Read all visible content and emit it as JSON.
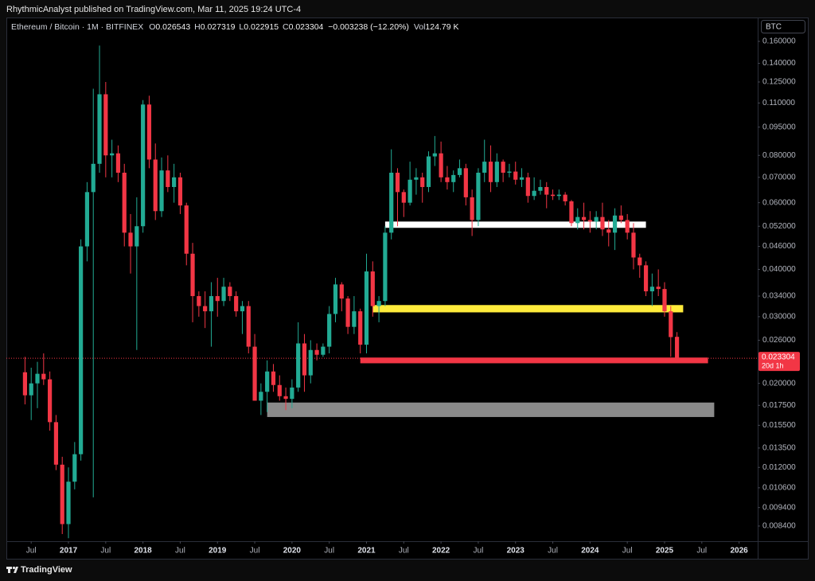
{
  "page_title": "RhythmicAnalyst published on TradingView.com, Mar 11, 2025 19:24 UTC-4",
  "footer": "TradingView",
  "chart_data": {
    "type": "candlestick",
    "symbol": "Ethereum / Bitcoin · 1M · BITFINEX",
    "ohlc": [
      {
        "label": "O",
        "value": 0.026543
      },
      {
        "label": "H",
        "value": 0.027319
      },
      {
        "label": "L",
        "value": 0.022915
      },
      {
        "label": "C",
        "value": 0.023304
      }
    ],
    "change": "−0.003238 (−12.20%)",
    "volume_label": "Vol",
    "volume": "124.79 K",
    "currency": "BTC",
    "last_price": 0.023304,
    "countdown": "20d 1h",
    "log_scale": true,
    "grid": false,
    "up_color": "#22ab94",
    "down_color": "#f23645",
    "xlim": [
      "2016-03",
      "2026-04"
    ],
    "ylim": [
      0.00766,
      0.185
    ],
    "xticks": [
      {
        "value": "2016-07",
        "label": "Jul"
      },
      {
        "value": "2017-01",
        "label": "2017"
      },
      {
        "value": "2017-07",
        "label": "Jul"
      },
      {
        "value": "2018-01",
        "label": "2018"
      },
      {
        "value": "2018-07",
        "label": "Jul"
      },
      {
        "value": "2019-01",
        "label": "2019"
      },
      {
        "value": "2019-07",
        "label": "Jul"
      },
      {
        "value": "2020-01",
        "label": "2020"
      },
      {
        "value": "2020-07",
        "label": "Jul"
      },
      {
        "value": "2021-01",
        "label": "2021"
      },
      {
        "value": "2021-07",
        "label": "Jul"
      },
      {
        "value": "2022-01",
        "label": "2022"
      },
      {
        "value": "2022-07",
        "label": "Jul"
      },
      {
        "value": "2023-01",
        "label": "2023"
      },
      {
        "value": "2023-07",
        "label": "Jul"
      },
      {
        "value": "2024-01",
        "label": "2024"
      },
      {
        "value": "2024-07",
        "label": "Jul"
      },
      {
        "value": "2025-01",
        "label": "2025"
      },
      {
        "value": "2025-07",
        "label": "Jul"
      },
      {
        "value": "2026-01",
        "label": "2026"
      }
    ],
    "yticks": [
      {
        "value": 0.16,
        "label": "0.160000"
      },
      {
        "value": 0.14,
        "label": "0.140000"
      },
      {
        "value": 0.125,
        "label": "0.125000"
      },
      {
        "value": 0.11,
        "label": "0.110000"
      },
      {
        "value": 0.095,
        "label": "0.095000"
      },
      {
        "value": 0.08,
        "label": "0.080000"
      },
      {
        "value": 0.07,
        "label": "0.070000"
      },
      {
        "value": 0.06,
        "label": "0.060000"
      },
      {
        "value": 0.052,
        "label": "0.052000"
      },
      {
        "value": 0.046,
        "label": "0.046000"
      },
      {
        "value": 0.04,
        "label": "0.040000"
      },
      {
        "value": 0.034,
        "label": "0.034000"
      },
      {
        "value": 0.03,
        "label": "0.030000"
      },
      {
        "value": 0.026,
        "label": "0.026000"
      },
      {
        "value": 0.02,
        "label": "0.020000"
      },
      {
        "value": 0.0175,
        "label": "0.017500"
      },
      {
        "value": 0.0155,
        "label": "0.015500"
      },
      {
        "value": 0.0135,
        "label": "0.013500"
      },
      {
        "value": 0.012,
        "label": "0.012000"
      },
      {
        "value": 0.0106,
        "label": "0.010600"
      },
      {
        "value": 0.0094,
        "label": "0.009400"
      },
      {
        "value": 0.0084,
        "label": "0.008400"
      }
    ],
    "bands": [
      {
        "color": "#8a8a8a",
        "top": 0.0178,
        "bottom": 0.0163,
        "start": "2019-09",
        "end": "2025-09"
      },
      {
        "color": "#f23645",
        "top": 0.0234,
        "bottom": 0.0226,
        "start": "2020-12",
        "end": "2025-08"
      },
      {
        "color": "#ffeb3b",
        "top": 0.0322,
        "bottom": 0.0308,
        "start": "2021-02",
        "end": "2025-04"
      },
      {
        "color": "#ffffff",
        "top": 0.0535,
        "bottom": 0.0515,
        "start": "2021-04",
        "end": "2024-10"
      }
    ],
    "x": [
      "2016-06",
      "2016-07",
      "2016-08",
      "2016-09",
      "2016-10",
      "2016-11",
      "2016-12",
      "2017-01",
      "2017-02",
      "2017-03",
      "2017-04",
      "2017-05",
      "2017-06",
      "2017-07",
      "2017-08",
      "2017-09",
      "2017-10",
      "2017-11",
      "2017-12",
      "2018-01",
      "2018-02",
      "2018-03",
      "2018-04",
      "2018-05",
      "2018-06",
      "2018-07",
      "2018-08",
      "2018-09",
      "2018-10",
      "2018-11",
      "2018-12",
      "2019-01",
      "2019-02",
      "2019-03",
      "2019-04",
      "2019-05",
      "2019-06",
      "2019-07",
      "2019-08",
      "2019-09",
      "2019-10",
      "2019-11",
      "2019-12",
      "2020-01",
      "2020-02",
      "2020-03",
      "2020-04",
      "2020-05",
      "2020-06",
      "2020-07",
      "2020-08",
      "2020-09",
      "2020-10",
      "2020-11",
      "2020-12",
      "2021-01",
      "2021-02",
      "2021-03",
      "2021-04",
      "2021-05",
      "2021-06",
      "2021-07",
      "2021-08",
      "2021-09",
      "2021-10",
      "2021-11",
      "2021-12",
      "2022-01",
      "2022-02",
      "2022-03",
      "2022-04",
      "2022-05",
      "2022-06",
      "2022-07",
      "2022-08",
      "2022-09",
      "2022-10",
      "2022-11",
      "2022-12",
      "2023-01",
      "2023-02",
      "2023-03",
      "2023-04",
      "2023-05",
      "2023-06",
      "2023-07",
      "2023-08",
      "2023-09",
      "2023-10",
      "2023-11",
      "2023-12",
      "2024-01",
      "2024-02",
      "2024-03",
      "2024-04",
      "2024-05",
      "2024-06",
      "2024-07",
      "2024-08",
      "2024-09",
      "2024-10",
      "2024-11",
      "2024-12",
      "2025-01",
      "2025-02",
      "2025-03"
    ],
    "open": [
      0.0214,
      0.0186,
      0.02,
      0.0212,
      0.0205,
      0.0158,
      0.0122,
      0.0085,
      0.011,
      0.013,
      0.046,
      0.064,
      0.076,
      0.116,
      0.08,
      0.081,
      0.072,
      0.05,
      0.046,
      0.052,
      0.109,
      0.078,
      0.057,
      0.073,
      0.066,
      0.07,
      0.059,
      0.044,
      0.034,
      0.032,
      0.031,
      0.034,
      0.033,
      0.036,
      0.034,
      0.031,
      0.032,
      0.025,
      0.018,
      0.019,
      0.0215,
      0.0198,
      0.0185,
      0.0182,
      0.0195,
      0.0255,
      0.021,
      0.0245,
      0.0238,
      0.025,
      0.0305,
      0.0365,
      0.0335,
      0.0282,
      0.031,
      0.0253,
      0.0395,
      0.032,
      0.033,
      0.05,
      0.072,
      0.064,
      0.06,
      0.069,
      0.07,
      0.066,
      0.0795,
      0.081,
      0.07,
      0.068,
      0.071,
      0.074,
      0.062,
      0.054,
      0.072,
      0.077,
      0.068,
      0.077,
      0.072,
      0.0725,
      0.069,
      0.07,
      0.0625,
      0.0645,
      0.066,
      0.063,
      0.0625,
      0.063,
      0.0605,
      0.053,
      0.055,
      0.054,
      0.0535,
      0.055,
      0.051,
      0.05,
      0.0555,
      0.054,
      0.05,
      0.043,
      0.041,
      0.035,
      0.036,
      0.0355,
      0.031,
      0.026543
    ],
    "high": [
      0.0235,
      0.022,
      0.0228,
      0.024,
      0.0215,
      0.0165,
      0.0128,
      0.012,
      0.014,
      0.048,
      0.068,
      0.12,
      0.156,
      0.125,
      0.088,
      0.085,
      0.076,
      0.056,
      0.062,
      0.112,
      0.115,
      0.086,
      0.079,
      0.08,
      0.076,
      0.072,
      0.06,
      0.047,
      0.035,
      0.035,
      0.037,
      0.038,
      0.038,
      0.037,
      0.035,
      0.033,
      0.033,
      0.027,
      0.02,
      0.023,
      0.0225,
      0.021,
      0.0195,
      0.0205,
      0.029,
      0.027,
      0.026,
      0.0255,
      0.0255,
      0.032,
      0.038,
      0.037,
      0.034,
      0.034,
      0.0315,
      0.044,
      0.042,
      0.034,
      0.052,
      0.083,
      0.074,
      0.065,
      0.077,
      0.074,
      0.072,
      0.082,
      0.09,
      0.087,
      0.075,
      0.073,
      0.078,
      0.076,
      0.065,
      0.074,
      0.088,
      0.085,
      0.081,
      0.078,
      0.076,
      0.077,
      0.074,
      0.072,
      0.07,
      0.069,
      0.068,
      0.065,
      0.065,
      0.064,
      0.061,
      0.058,
      0.06,
      0.057,
      0.057,
      0.06,
      0.054,
      0.058,
      0.059,
      0.056,
      0.053,
      0.044,
      0.042,
      0.039,
      0.04,
      0.037,
      0.032,
      0.027319
    ],
    "low": [
      0.0176,
      0.016,
      0.0172,
      0.0198,
      0.015,
      0.0118,
      0.008,
      0.0078,
      0.0105,
      0.0125,
      0.042,
      0.01,
      0.072,
      0.07,
      0.07,
      0.068,
      0.046,
      0.039,
      0.0245,
      0.05,
      0.074,
      0.054,
      0.055,
      0.064,
      0.06,
      0.056,
      0.041,
      0.029,
      0.03,
      0.028,
      0.025,
      0.03,
      0.032,
      0.033,
      0.03,
      0.027,
      0.024,
      0.018,
      0.0165,
      0.0168,
      0.019,
      0.018,
      0.017,
      0.0172,
      0.019,
      0.019,
      0.02,
      0.023,
      0.0235,
      0.024,
      0.029,
      0.031,
      0.027,
      0.027,
      0.024,
      0.024,
      0.03,
      0.029,
      0.032,
      0.048,
      0.052,
      0.055,
      0.059,
      0.063,
      0.06,
      0.064,
      0.075,
      0.068,
      0.065,
      0.064,
      0.07,
      0.059,
      0.049,
      0.052,
      0.068,
      0.064,
      0.066,
      0.068,
      0.07,
      0.067,
      0.066,
      0.06,
      0.061,
      0.063,
      0.058,
      0.061,
      0.061,
      0.059,
      0.052,
      0.051,
      0.051,
      0.05,
      0.051,
      0.049,
      0.046,
      0.045,
      0.053,
      0.048,
      0.04,
      0.038,
      0.034,
      0.032,
      0.034,
      0.03,
      0.0235,
      0.022915
    ],
    "close": [
      0.0186,
      0.02,
      0.0212,
      0.0205,
      0.0158,
      0.0122,
      0.0085,
      0.011,
      0.013,
      0.046,
      0.064,
      0.076,
      0.116,
      0.08,
      0.081,
      0.072,
      0.05,
      0.046,
      0.052,
      0.109,
      0.078,
      0.057,
      0.073,
      0.066,
      0.07,
      0.059,
      0.044,
      0.034,
      0.032,
      0.031,
      0.034,
      0.033,
      0.036,
      0.034,
      0.031,
      0.032,
      0.025,
      0.018,
      0.019,
      0.0215,
      0.0198,
      0.0185,
      0.0182,
      0.0195,
      0.0255,
      0.021,
      0.0245,
      0.0238,
      0.025,
      0.0305,
      0.0365,
      0.0335,
      0.0282,
      0.031,
      0.0253,
      0.0395,
      0.032,
      0.033,
      0.05,
      0.072,
      0.064,
      0.06,
      0.069,
      0.07,
      0.066,
      0.0795,
      0.081,
      0.07,
      0.068,
      0.071,
      0.074,
      0.062,
      0.054,
      0.072,
      0.077,
      0.068,
      0.077,
      0.072,
      0.0725,
      0.069,
      0.07,
      0.0625,
      0.0645,
      0.066,
      0.063,
      0.0625,
      0.063,
      0.0605,
      0.053,
      0.055,
      0.054,
      0.0535,
      0.055,
      0.051,
      0.05,
      0.0555,
      0.054,
      0.05,
      0.043,
      0.041,
      0.035,
      0.036,
      0.0355,
      0.031,
      0.0265,
      0.023304
    ]
  }
}
